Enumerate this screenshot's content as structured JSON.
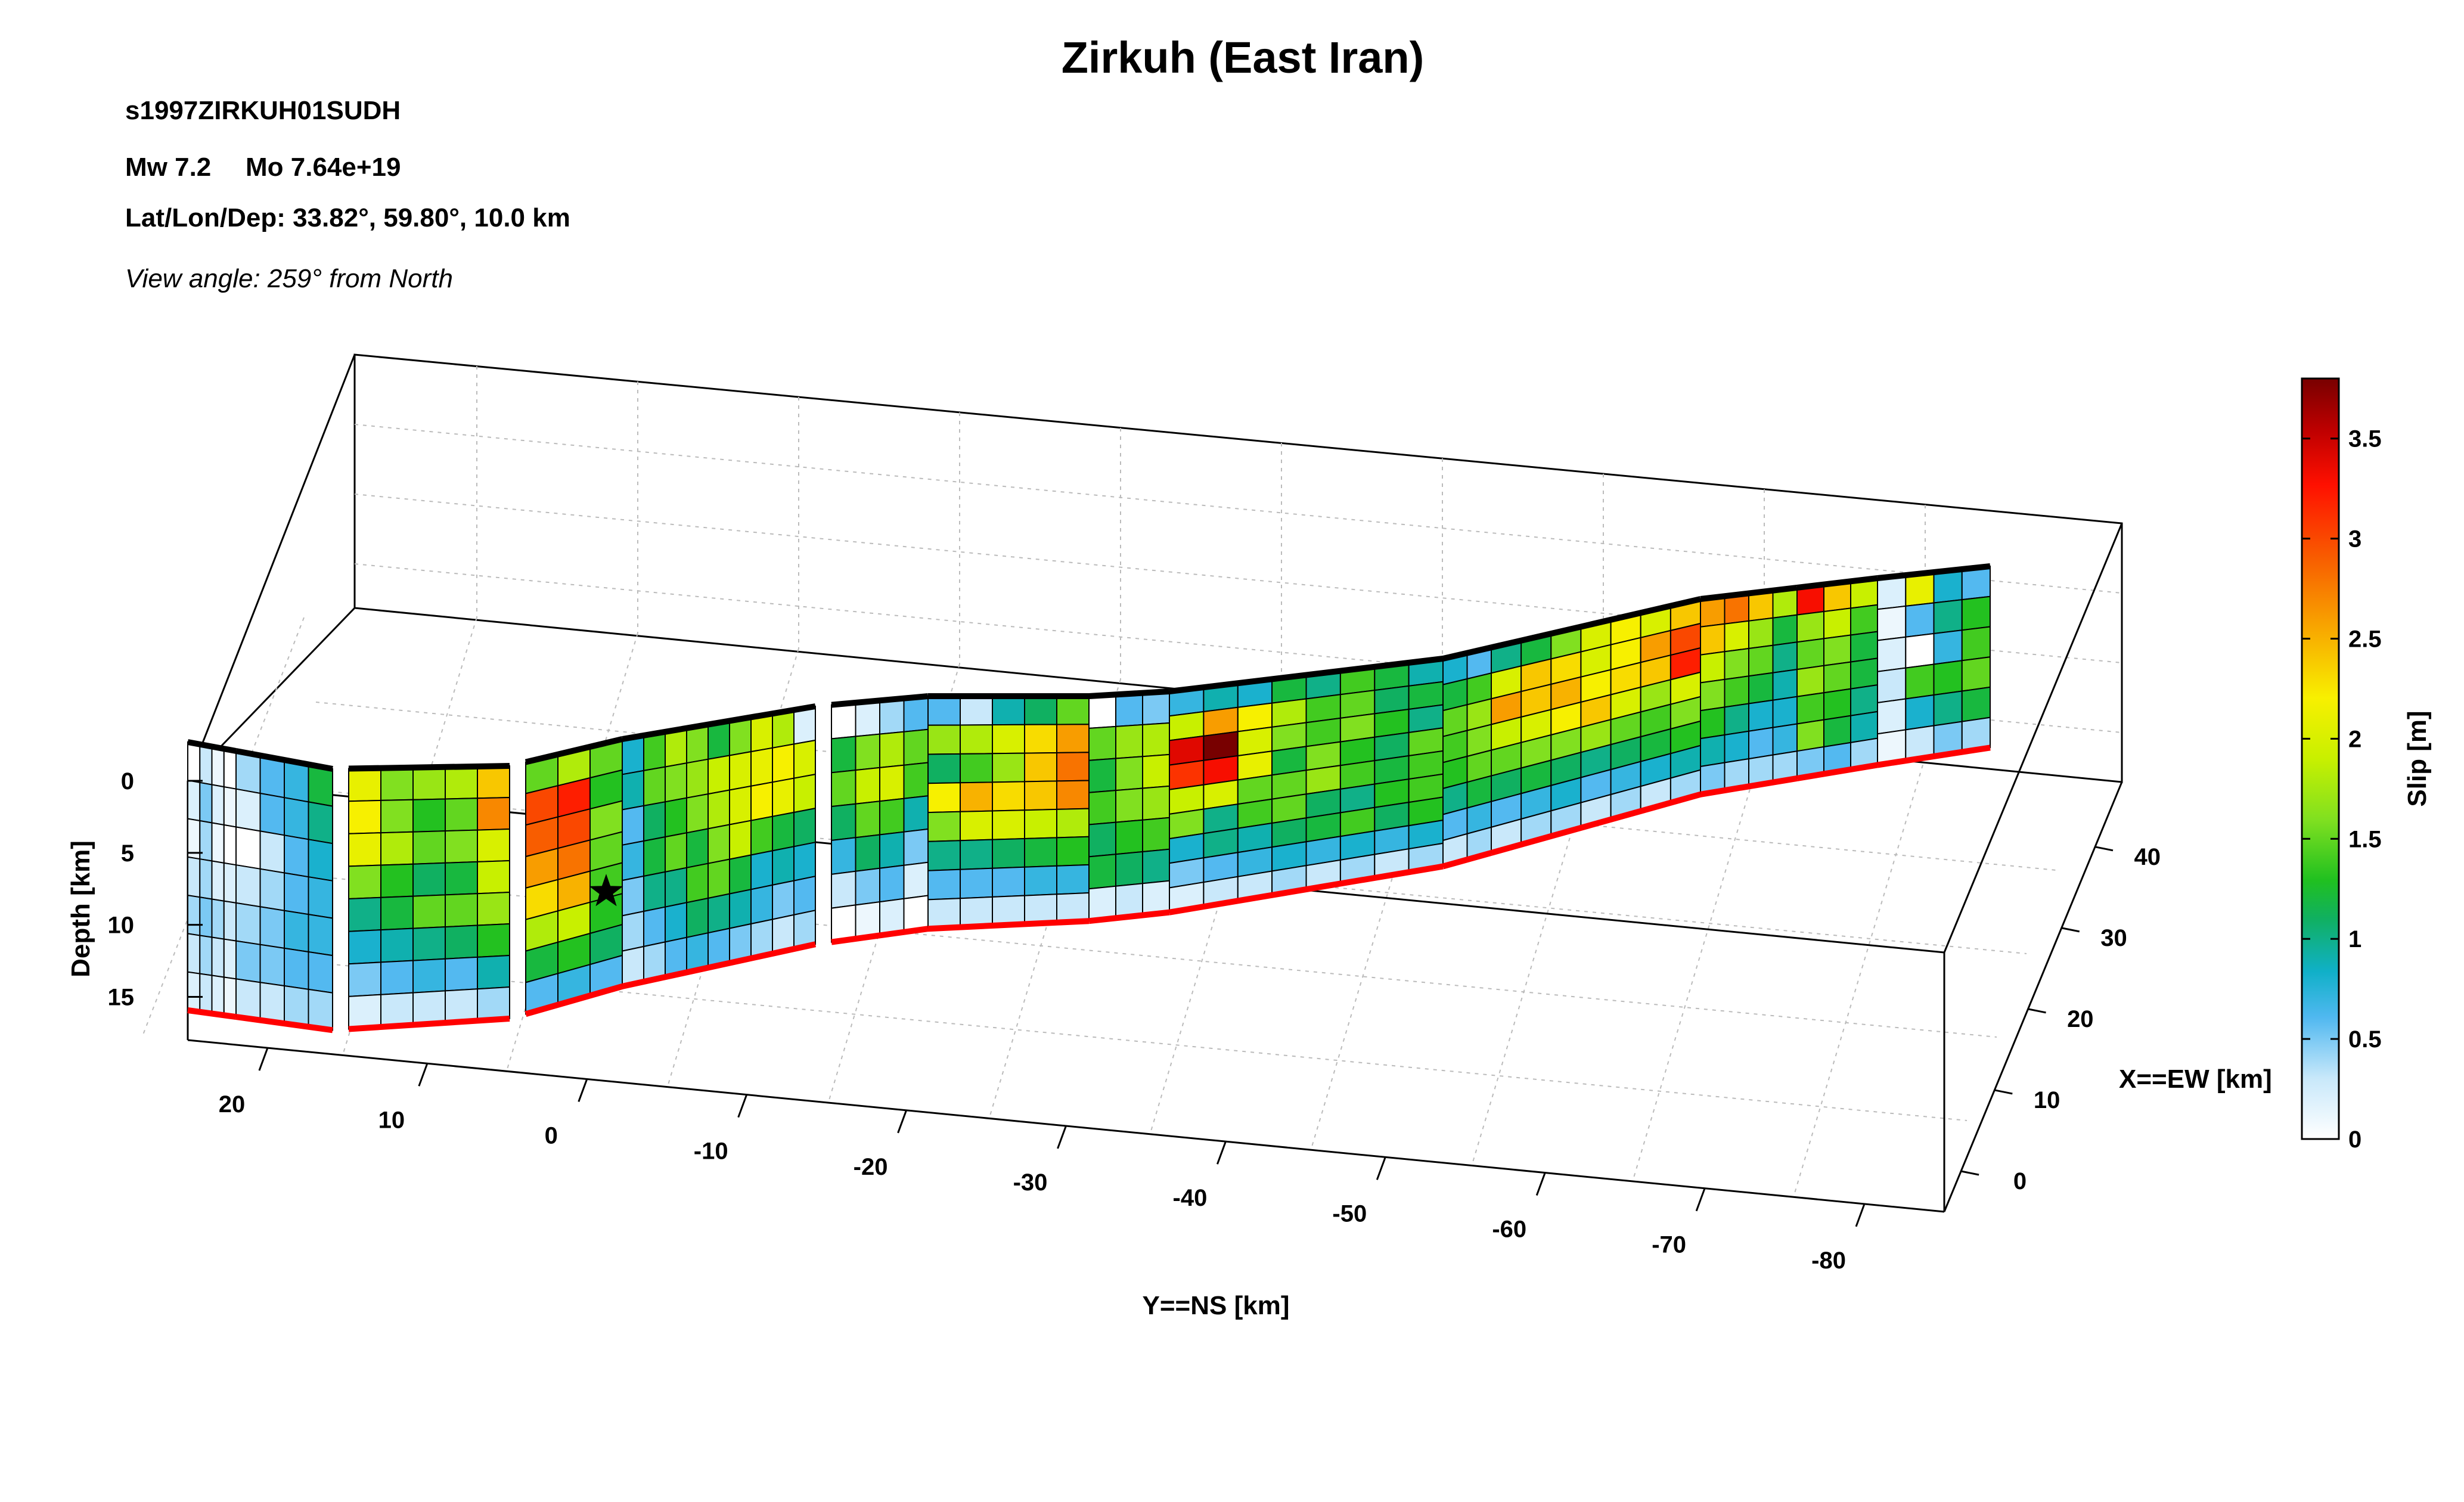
{
  "chart_data": {
    "type": "heatmap",
    "title": "Zirkuh (East Iran)",
    "event_id": "s1997ZIRKUH01SUDH",
    "mw_label": "Mw 7.2",
    "mo_label": "Mo 7.64e+19",
    "location_label": "Lat/Lon/Dep: 33.82°, 59.80°, 10.0 km",
    "view_label": "View angle: 259° from North",
    "xlabel": "Y==NS [km]",
    "ylabel": "X==EW [km]",
    "zlabel": "Depth [km]",
    "colorbar_label": "Slip [m]",
    "ns_ticks": [
      "20",
      "10",
      "0",
      "-10",
      "-20",
      "-30",
      "-40",
      "-50",
      "-60",
      "-70",
      "-80"
    ],
    "ew_ticks": [
      "0",
      "10",
      "20",
      "30",
      "40"
    ],
    "depth_ticks": [
      "0",
      "5",
      "10",
      "15"
    ],
    "colorbar_ticks": [
      "0",
      "0.5",
      "1",
      "1.5",
      "2",
      "2.5",
      "3",
      "3.5"
    ],
    "ns_range": [
      25,
      -85
    ],
    "ew_range": [
      -5,
      48
    ],
    "depth_range": [
      0,
      18
    ],
    "slip_range": [
      0,
      3.8
    ],
    "hypocenter": {
      "ns_km": -1,
      "depth_km": 10.8
    },
    "segments": [
      {
        "id": 1,
        "ns_range": [
          25,
          22
        ],
        "slip": [
          [
            0,
            0.3,
            0.1,
            0.0
          ],
          [
            0.2,
            0.5,
            0.2,
            0.1
          ],
          [
            0.1,
            0.4,
            0.1,
            0.0
          ],
          [
            0.3,
            0.4,
            0.2,
            0.2
          ],
          [
            0.4,
            0.5,
            0.4,
            0.3
          ],
          [
            0.3,
            0.4,
            0.3,
            0.2
          ],
          [
            0.2,
            0.3,
            0.2,
            0.1
          ]
        ]
      },
      {
        "id": 2,
        "ns_range": [
          22,
          16
        ],
        "slip": [
          [
            0.4,
            0.6,
            0.7,
            1.2
          ],
          [
            0.2,
            0.6,
            0.7,
            1.0
          ],
          [
            0.0,
            0.3,
            0.6,
            0.8
          ],
          [
            0.3,
            0.4,
            0.6,
            0.7
          ],
          [
            0.4,
            0.5,
            0.7,
            0.7
          ],
          [
            0.5,
            0.5,
            0.6,
            0.6
          ],
          [
            0.3,
            0.3,
            0.4,
            0.4
          ]
        ]
      },
      {
        "id": 3,
        "ns_range": [
          15,
          5
        ],
        "slip": [
          [
            2.1,
            1.6,
            1.7,
            1.8,
            2.4
          ],
          [
            2.2,
            1.6,
            1.3,
            1.5,
            2.7
          ],
          [
            2.1,
            1.8,
            1.5,
            1.6,
            2.0
          ],
          [
            1.6,
            1.3,
            1.1,
            1.2,
            1.9
          ],
          [
            1.0,
            1.2,
            1.5,
            1.5,
            1.7
          ],
          [
            0.8,
            0.9,
            1.0,
            1.1,
            1.3
          ],
          [
            0.5,
            0.6,
            0.7,
            0.6,
            0.9
          ],
          [
            0.2,
            0.3,
            0.3,
            0.3,
            0.4
          ]
        ]
      },
      {
        "id": 4,
        "ns_range": [
          4,
          -2
        ],
        "slip": [
          [
            1.5,
            1.8,
            1.5
          ],
          [
            3.0,
            3.2,
            1.3
          ],
          [
            2.9,
            3.0,
            1.6
          ],
          [
            2.6,
            2.8,
            1.5
          ],
          [
            2.3,
            2.5,
            1.4
          ],
          [
            1.8,
            1.9,
            1.3
          ],
          [
            1.2,
            1.3,
            1.1
          ],
          [
            0.6,
            0.7,
            0.6
          ]
        ]
      },
      {
        "id": 5,
        "ns_range": [
          -2,
          -14
        ],
        "slip": [
          [
            0.8,
            1.4,
            1.8,
            1.6,
            1.2,
            1.6,
            2.0,
            1.8,
            0.2
          ],
          [
            0.9,
            1.5,
            1.6,
            1.7,
            1.9,
            2.0,
            2.1,
            2.2,
            2.0
          ],
          [
            0.6,
            1.1,
            1.3,
            1.6,
            1.8,
            2.0,
            2.2,
            2.1,
            1.9
          ],
          [
            0.7,
            1.2,
            1.5,
            1.2,
            1.6,
            1.9,
            1.4,
            1.2,
            1.1
          ],
          [
            0.5,
            1.0,
            1.0,
            1.4,
            1.5,
            1.2,
            0.8,
            0.9,
            0.8
          ],
          [
            0.4,
            0.6,
            0.8,
            1.1,
            1.0,
            0.9,
            0.7,
            0.5,
            0.6
          ],
          [
            0.3,
            0.4,
            0.6,
            0.7,
            0.6,
            0.5,
            0.4,
            0.3,
            0.4
          ]
        ]
      },
      {
        "id": 6,
        "ns_range": [
          -15,
          -21
        ],
        "slip": [
          [
            0.0,
            0.2,
            0.4,
            0.6
          ],
          [
            1.2,
            1.6,
            1.8,
            1.5
          ],
          [
            1.5,
            1.9,
            2.0,
            1.4
          ],
          [
            1.1,
            1.5,
            1.4,
            0.9
          ],
          [
            0.7,
            1.1,
            0.9,
            0.5
          ],
          [
            0.3,
            0.5,
            0.6,
            0.2
          ],
          [
            0.0,
            0.1,
            0.2,
            0.0
          ]
        ]
      },
      {
        "id": 7,
        "ns_range": [
          -21,
          -31
        ],
        "slip": [
          [
            0.6,
            0.3,
            0.9,
            1.1,
            1.5
          ],
          [
            1.7,
            1.8,
            2.0,
            2.3,
            2.6
          ],
          [
            1.1,
            1.4,
            1.7,
            2.4,
            2.8
          ],
          [
            2.2,
            2.5,
            2.3,
            2.4,
            2.7
          ],
          [
            1.6,
            2.0,
            2.0,
            1.9,
            1.8
          ],
          [
            1.0,
            1.0,
            1.1,
            1.2,
            1.3
          ],
          [
            0.6,
            0.6,
            0.6,
            0.7,
            0.7
          ],
          [
            0.3,
            0.3,
            0.3,
            0.3,
            0.3
          ]
        ]
      },
      {
        "id": 8,
        "ns_range": [
          -31,
          -36
        ],
        "slip": [
          [
            0.0,
            0.6,
            0.5
          ],
          [
            1.5,
            1.7,
            1.8
          ],
          [
            1.2,
            1.6,
            1.9
          ],
          [
            1.4,
            1.6,
            1.7
          ],
          [
            1.1,
            1.3,
            1.4
          ],
          [
            1.2,
            1.1,
            1.0
          ],
          [
            0.2,
            0.3,
            0.2
          ]
        ]
      },
      {
        "id": 9,
        "ns_range": [
          -36,
          -53
        ],
        "slip": [
          [
            0.7,
            0.9,
            0.8,
            1.2,
            1.0,
            1.4,
            1.2,
            0.9
          ],
          [
            1.9,
            2.6,
            2.2,
            1.8,
            1.4,
            1.5,
            1.1,
            1.2
          ],
          [
            3.4,
            3.8,
            2.0,
            1.6,
            1.4,
            1.6,
            1.3,
            1.0
          ],
          [
            3.1,
            3.3,
            2.1,
            1.2,
            1.6,
            1.3,
            1.1,
            1.5
          ],
          [
            1.9,
            2.0,
            1.5,
            1.5,
            1.7,
            1.4,
            1.2,
            1.4
          ],
          [
            1.6,
            1.0,
            1.4,
            1.5,
            1.1,
            1.0,
            1.3,
            1.4
          ],
          [
            0.8,
            1.0,
            0.9,
            1.1,
            1.2,
            1.4,
            1.1,
            1.3
          ],
          [
            0.5,
            0.6,
            0.7,
            0.8,
            0.7,
            0.8,
            0.7,
            0.8
          ],
          [
            0.2,
            0.3,
            0.3,
            0.4,
            0.3,
            0.4,
            0.3,
            0.4
          ]
        ]
      },
      {
        "id": 10,
        "ns_range": [
          -53,
          -56
        ],
        "slip": [
          [
            0.8,
            0.6
          ],
          [
            1.2,
            1.4
          ],
          [
            1.5,
            1.7
          ],
          [
            1.4,
            1.6
          ],
          [
            1.3,
            1.5
          ],
          [
            1.0,
            1.2
          ],
          [
            0.6,
            0.7
          ],
          [
            0.3,
            0.4
          ]
        ]
      },
      {
        "id": 11,
        "ns_range": [
          -56,
          -69
        ],
        "slip": [
          [
            1.0,
            1.2,
            1.6,
            2.0,
            2.2,
            2.0,
            2.4
          ],
          [
            2.0,
            2.4,
            2.3,
            2.0,
            2.2,
            2.6,
            3.0
          ],
          [
            2.6,
            2.4,
            2.5,
            2.2,
            2.3,
            2.4,
            3.2
          ],
          [
            1.9,
            2.0,
            2.2,
            2.4,
            2.0,
            1.7,
            2.0
          ],
          [
            1.5,
            1.6,
            1.6,
            1.7,
            1.5,
            1.4,
            1.6
          ],
          [
            1.1,
            1.2,
            1.1,
            1.0,
            1.1,
            1.2,
            1.3
          ],
          [
            0.6,
            0.7,
            0.8,
            0.6,
            0.7,
            0.8,
            0.9
          ],
          [
            0.3,
            0.4,
            0.4,
            0.3,
            0.4,
            0.3,
            0.4
          ]
        ]
      },
      {
        "id": 12,
        "ns_range": [
          -69,
          -75
        ],
        "slip": [
          [
            2.6,
            2.8,
            2.4,
            1.8
          ],
          [
            2.4,
            2.0,
            1.7,
            1.2
          ],
          [
            1.9,
            1.6,
            1.5,
            1.0
          ],
          [
            1.6,
            1.4,
            1.2,
            0.9
          ],
          [
            1.3,
            1.0,
            0.8,
            0.8
          ],
          [
            0.9,
            0.8,
            0.6,
            0.7
          ],
          [
            0.5,
            0.4,
            0.4,
            0.4
          ]
        ]
      },
      {
        "id": 13,
        "ns_range": [
          -75,
          -80
        ],
        "slip": [
          [
            3.3,
            2.4,
            1.9
          ],
          [
            1.7,
            1.9,
            1.4
          ],
          [
            1.5,
            1.6,
            1.2
          ],
          [
            1.7,
            1.5,
            1.2
          ],
          [
            1.4,
            1.3,
            1.0
          ],
          [
            1.6,
            1.2,
            0.9
          ],
          [
            0.5,
            0.6,
            0.4
          ]
        ]
      },
      {
        "id": 14,
        "ns_range": [
          -80,
          -87
        ],
        "slip": [
          [
            0.2,
            2.1,
            0.8,
            0.6
          ],
          [
            0.1,
            0.6,
            1.0,
            1.3
          ],
          [
            0.2,
            0.0,
            0.7,
            1.4
          ],
          [
            0.3,
            1.4,
            1.3,
            1.5
          ],
          [
            0.2,
            0.8,
            1.0,
            1.2
          ],
          [
            0.1,
            0.3,
            0.5,
            0.4
          ]
        ]
      }
    ]
  }
}
